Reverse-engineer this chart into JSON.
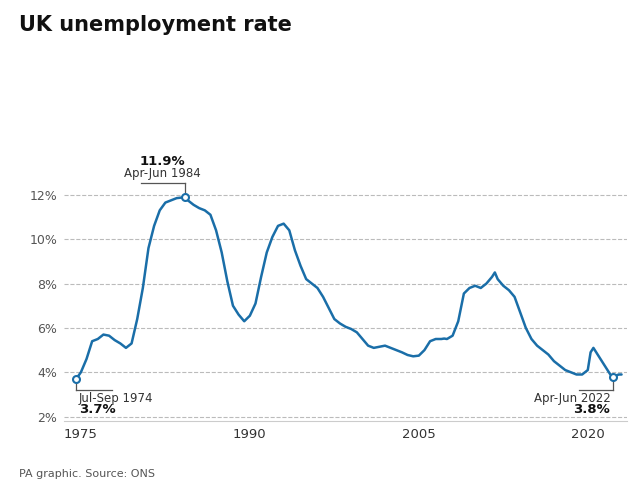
{
  "title": "UK unemployment rate",
  "source": "PA graphic. Source: ONS",
  "line_color": "#1a6ea8",
  "background_color": "#ffffff",
  "yticks": [
    2,
    4,
    6,
    8,
    10,
    12
  ],
  "ytick_labels": [
    "2%",
    "4%",
    "6%",
    "8%",
    "10%",
    "12%"
  ],
  "xticks": [
    1975,
    1990,
    2005,
    2020
  ],
  "ylim": [
    1.8,
    13.8
  ],
  "xlim": [
    1973.5,
    2023.5
  ],
  "data": [
    [
      1974.58,
      3.7
    ],
    [
      1975.0,
      4.0
    ],
    [
      1975.5,
      4.6
    ],
    [
      1976.0,
      5.4
    ],
    [
      1976.5,
      5.5
    ],
    [
      1977.0,
      5.7
    ],
    [
      1977.5,
      5.65
    ],
    [
      1978.0,
      5.45
    ],
    [
      1978.5,
      5.3
    ],
    [
      1979.0,
      5.1
    ],
    [
      1979.5,
      5.3
    ],
    [
      1980.0,
      6.4
    ],
    [
      1980.5,
      7.8
    ],
    [
      1981.0,
      9.6
    ],
    [
      1981.5,
      10.6
    ],
    [
      1982.0,
      11.3
    ],
    [
      1982.5,
      11.65
    ],
    [
      1983.0,
      11.75
    ],
    [
      1983.5,
      11.85
    ],
    [
      1984.0,
      11.88
    ],
    [
      1984.25,
      11.9
    ],
    [
      1984.5,
      11.75
    ],
    [
      1985.0,
      11.55
    ],
    [
      1985.5,
      11.4
    ],
    [
      1986.0,
      11.3
    ],
    [
      1986.5,
      11.1
    ],
    [
      1987.0,
      10.4
    ],
    [
      1987.5,
      9.4
    ],
    [
      1988.0,
      8.1
    ],
    [
      1988.5,
      7.0
    ],
    [
      1989.0,
      6.6
    ],
    [
      1989.5,
      6.3
    ],
    [
      1990.0,
      6.55
    ],
    [
      1990.5,
      7.1
    ],
    [
      1991.0,
      8.3
    ],
    [
      1991.5,
      9.4
    ],
    [
      1992.0,
      10.1
    ],
    [
      1992.5,
      10.6
    ],
    [
      1993.0,
      10.7
    ],
    [
      1993.5,
      10.4
    ],
    [
      1994.0,
      9.5
    ],
    [
      1994.5,
      8.8
    ],
    [
      1995.0,
      8.2
    ],
    [
      1995.5,
      8.0
    ],
    [
      1996.0,
      7.8
    ],
    [
      1996.5,
      7.4
    ],
    [
      1997.0,
      6.9
    ],
    [
      1997.5,
      6.4
    ],
    [
      1998.0,
      6.2
    ],
    [
      1998.5,
      6.05
    ],
    [
      1999.0,
      5.95
    ],
    [
      1999.5,
      5.8
    ],
    [
      2000.0,
      5.5
    ],
    [
      2000.5,
      5.2
    ],
    [
      2001.0,
      5.1
    ],
    [
      2001.5,
      5.15
    ],
    [
      2002.0,
      5.2
    ],
    [
      2002.5,
      5.1
    ],
    [
      2003.0,
      5.0
    ],
    [
      2003.5,
      4.9
    ],
    [
      2004.0,
      4.78
    ],
    [
      2004.5,
      4.72
    ],
    [
      2005.0,
      4.75
    ],
    [
      2005.5,
      5.0
    ],
    [
      2006.0,
      5.4
    ],
    [
      2006.5,
      5.5
    ],
    [
      2007.0,
      5.5
    ],
    [
      2007.25,
      5.52
    ],
    [
      2007.5,
      5.5
    ],
    [
      2008.0,
      5.65
    ],
    [
      2008.5,
      6.3
    ],
    [
      2009.0,
      7.55
    ],
    [
      2009.5,
      7.8
    ],
    [
      2010.0,
      7.9
    ],
    [
      2010.5,
      7.8
    ],
    [
      2011.0,
      8.0
    ],
    [
      2011.5,
      8.3
    ],
    [
      2011.75,
      8.5
    ],
    [
      2012.0,
      8.2
    ],
    [
      2012.5,
      7.9
    ],
    [
      2013.0,
      7.7
    ],
    [
      2013.5,
      7.4
    ],
    [
      2014.0,
      6.7
    ],
    [
      2014.5,
      6.0
    ],
    [
      2015.0,
      5.5
    ],
    [
      2015.5,
      5.2
    ],
    [
      2016.0,
      5.0
    ],
    [
      2016.5,
      4.8
    ],
    [
      2017.0,
      4.5
    ],
    [
      2017.5,
      4.3
    ],
    [
      2018.0,
      4.1
    ],
    [
      2018.5,
      4.0
    ],
    [
      2019.0,
      3.9
    ],
    [
      2019.25,
      3.9
    ],
    [
      2019.5,
      3.9
    ],
    [
      2020.0,
      4.1
    ],
    [
      2020.25,
      4.9
    ],
    [
      2020.5,
      5.1
    ],
    [
      2020.75,
      4.9
    ],
    [
      2021.0,
      4.7
    ],
    [
      2021.25,
      4.5
    ],
    [
      2021.5,
      4.3
    ],
    [
      2021.75,
      4.1
    ],
    [
      2022.0,
      3.9
    ],
    [
      2022.25,
      3.8
    ],
    [
      2022.5,
      3.85
    ],
    [
      2022.75,
      3.9
    ],
    [
      2023.0,
      3.9
    ]
  ]
}
